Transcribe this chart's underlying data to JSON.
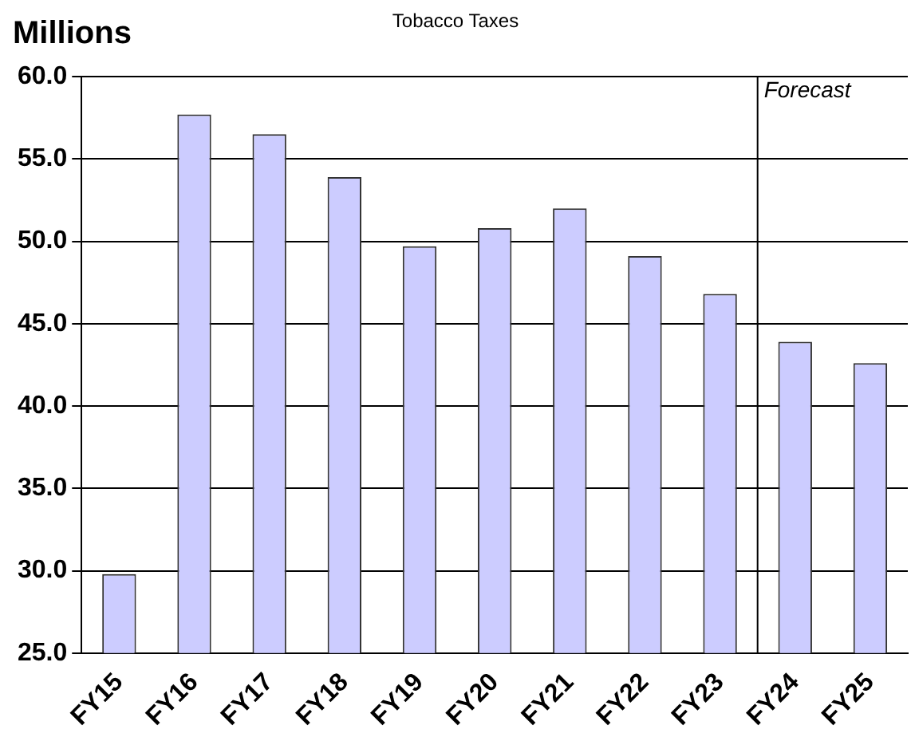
{
  "chart_data": {
    "type": "bar",
    "title": "Tobacco Taxes",
    "ylabel": "Millions",
    "categories": [
      "FY15",
      "FY16",
      "FY17",
      "FY18",
      "FY19",
      "FY20",
      "FY21",
      "FY22",
      "FY23",
      "FY24",
      "FY25"
    ],
    "values": [
      29.8,
      57.7,
      56.5,
      53.9,
      49.7,
      50.8,
      52.0,
      49.1,
      46.8,
      43.9,
      42.6
    ],
    "color": "#ccccff",
    "ylim": [
      25,
      60
    ],
    "yticks": [
      {
        "value": 25,
        "label": "25.0"
      },
      {
        "value": 30,
        "label": "30.0"
      },
      {
        "value": 35,
        "label": "35.0"
      },
      {
        "value": 40,
        "label": "40.0"
      },
      {
        "value": 45,
        "label": "45.0"
      },
      {
        "value": 50,
        "label": "50.0"
      },
      {
        "value": 55,
        "label": "55.0"
      },
      {
        "value": 60,
        "label": "60.0"
      }
    ],
    "ref_lines": [
      {
        "axis": "x",
        "value": "FY24",
        "label": "Forecast"
      }
    ],
    "grid": "y",
    "legend": false
  }
}
